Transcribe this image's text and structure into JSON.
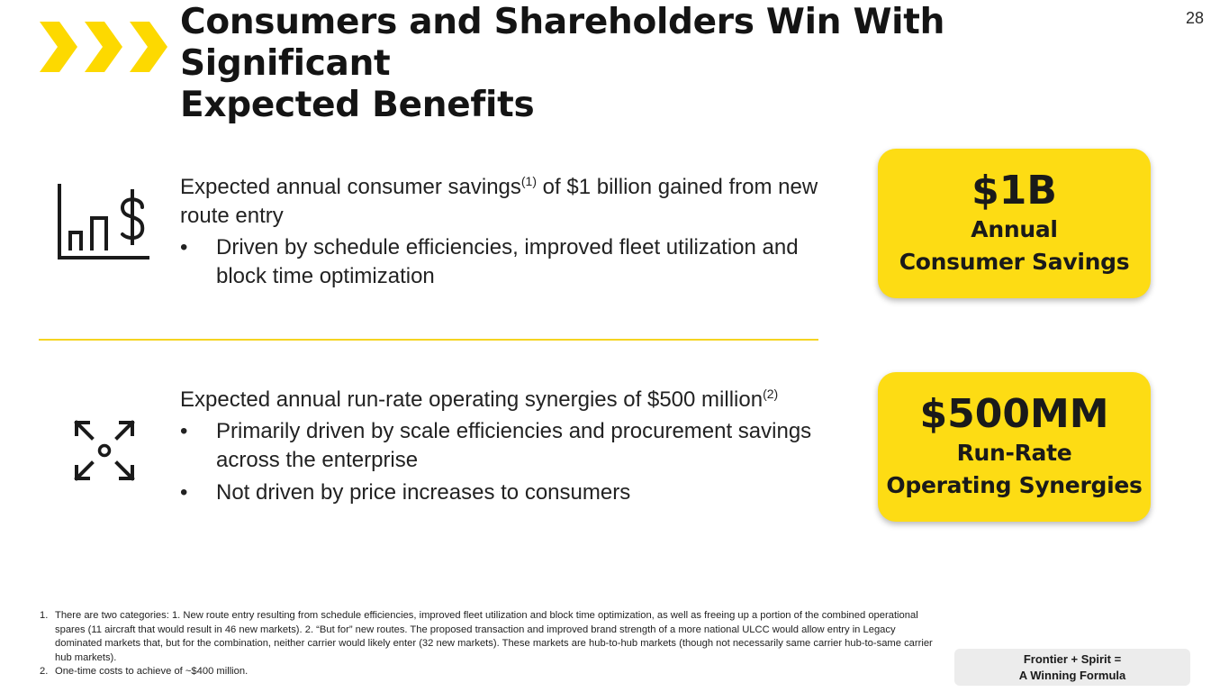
{
  "header": {
    "title_line1": "Consumers and Shareholders Win With Significant",
    "title_line2": "Expected Benefits",
    "page_number": "28"
  },
  "benefits": [
    {
      "icon": "chart-dollar-icon",
      "lead_text": "Expected annual consumer savings",
      "lead_sup": "(1)",
      "lead_rest": " of $1 billion gained from new route entry",
      "bullets": [
        "Driven by schedule efficiencies, improved fleet utilization and block time optimization"
      ],
      "card": {
        "value": "$1B",
        "line1": "Annual",
        "line2": "Consumer Savings"
      }
    },
    {
      "icon": "expand-arrows-icon",
      "lead_text": "Expected annual run-rate operating synergies of $500 million",
      "lead_sup": "(2)",
      "lead_rest": "",
      "bullets": [
        "Primarily driven by scale efficiencies and procurement savings across the enterprise",
        "Not driven by price increases to consumers"
      ],
      "card": {
        "value": "$500MM",
        "line1": "Run-Rate",
        "line2": "Operating Synergies"
      }
    }
  ],
  "bullet_char": "•",
  "footnotes": [
    {
      "num": "1.",
      "text": "There are two categories: 1. New route entry resulting from schedule efficiencies, improved fleet utilization and block time optimization, as well as freeing up a portion of the combined operational spares (11 aircraft that would result in 46 new markets). 2. “But for” new routes. The proposed transaction and improved brand strength of a more national ULCC would allow entry in Legacy dominated markets that, but for the combination, neither carrier would likely enter (32 new markets). These markets are hub-to-hub markets (though not necessarily same carrier hub-to-same carrier hub markets)."
    },
    {
      "num": "2.",
      "text": "One-time costs to achieve of ~$400 million."
    }
  ],
  "badge": {
    "line1": "Frontier + Spirit =",
    "line2": "A Winning Formula"
  },
  "colors": {
    "accent_yellow": "#fddc14",
    "chevron_yellow": "#fdd900",
    "badge_gray": "#ececec"
  }
}
